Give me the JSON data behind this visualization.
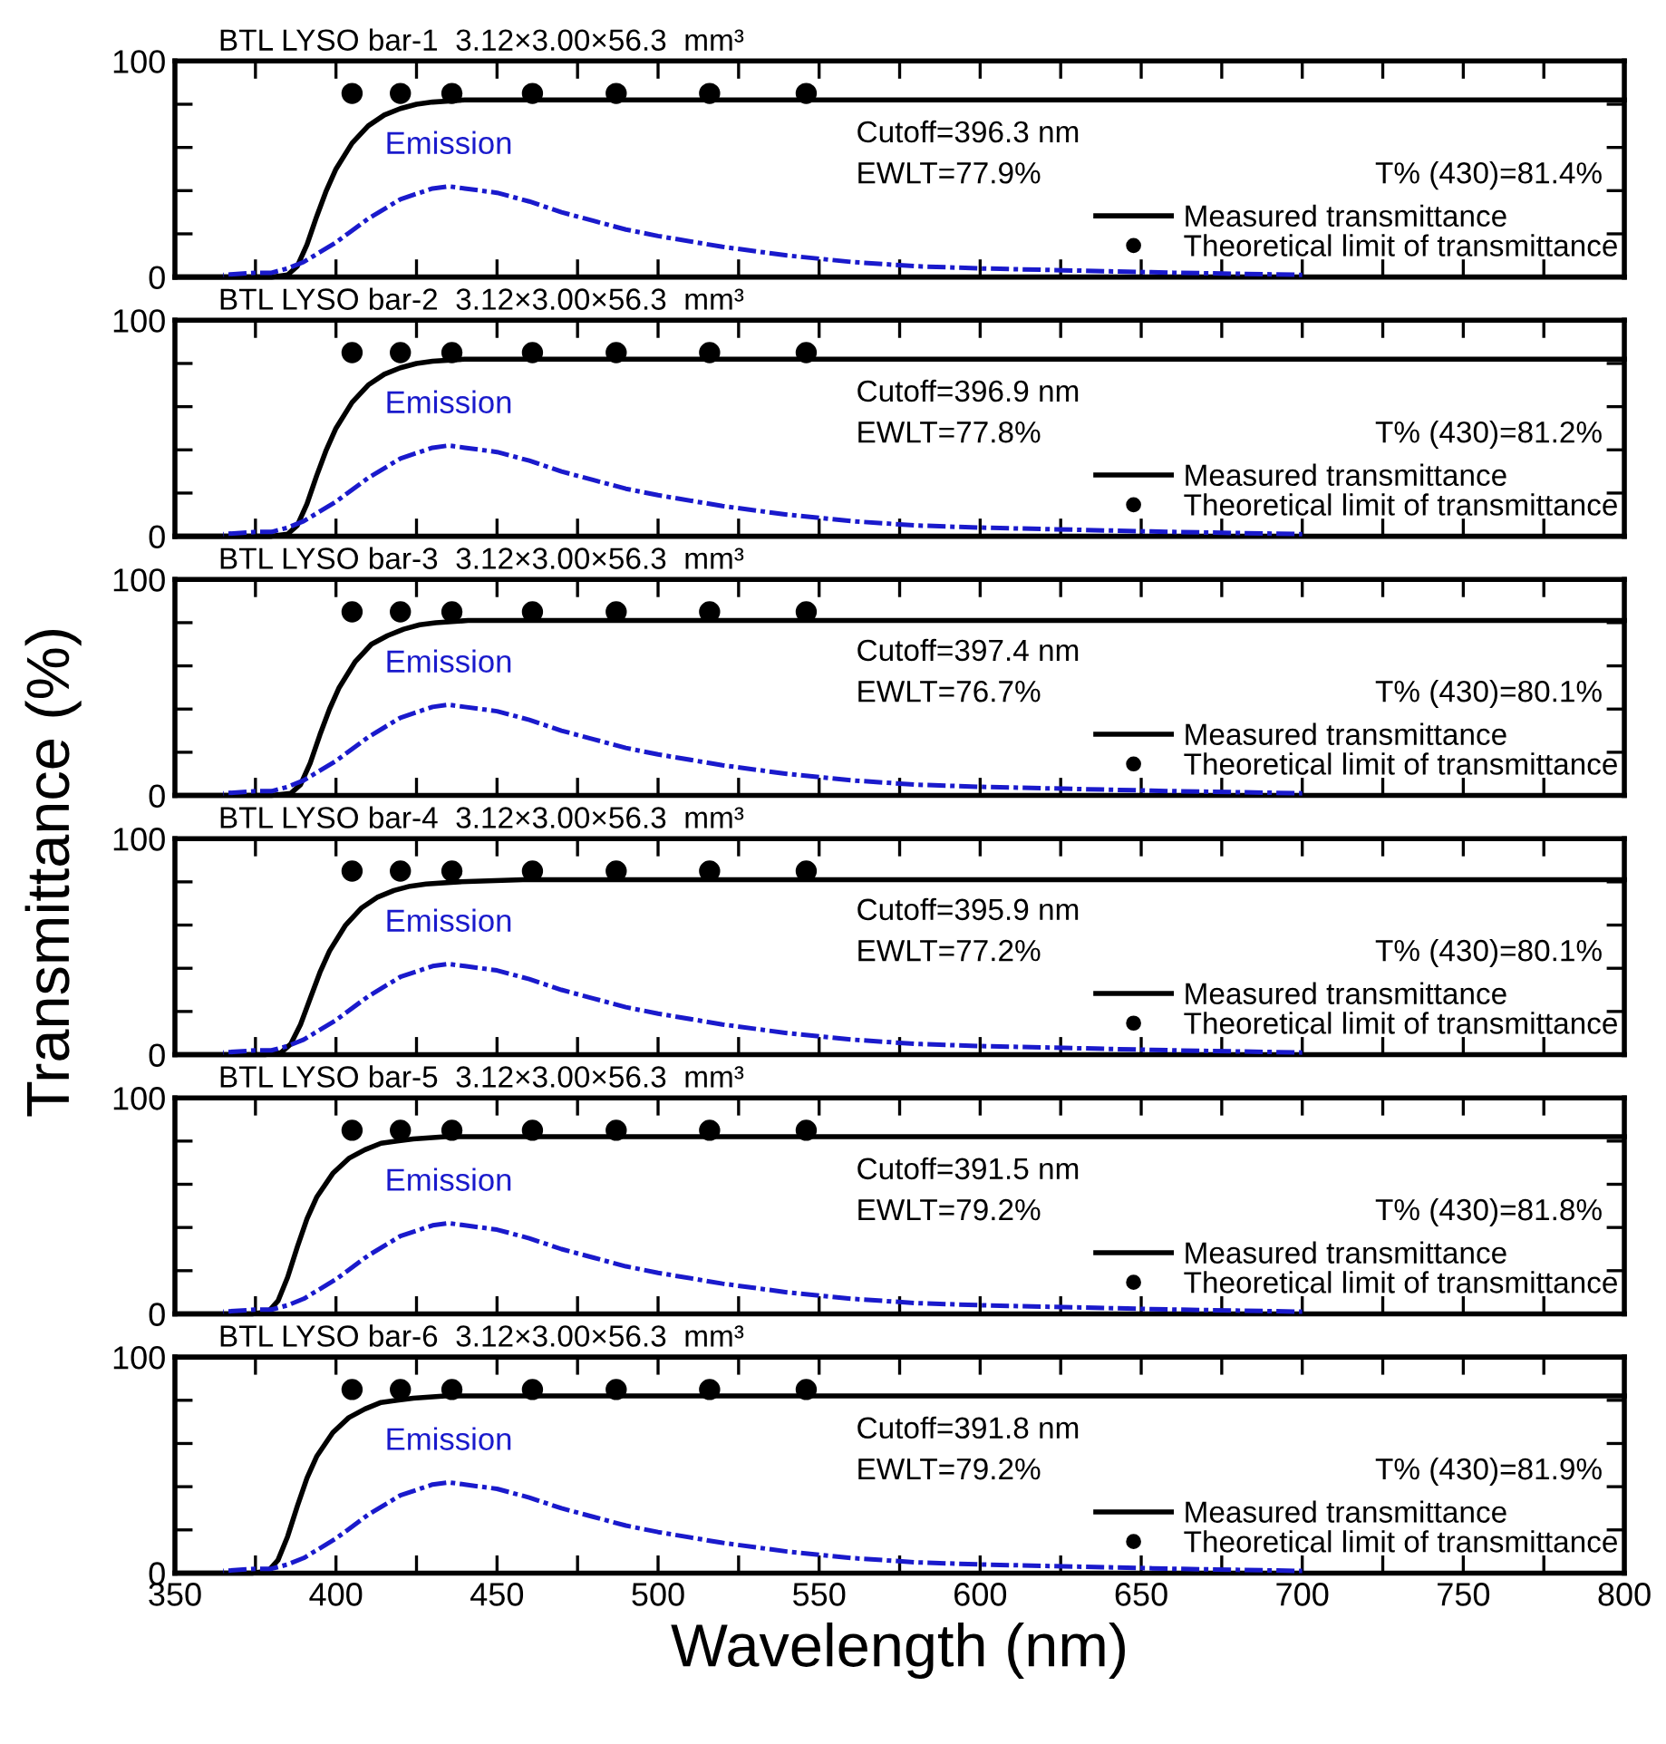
{
  "chart_data": [
    {
      "type": "line",
      "title": "BTL LYSO bar-1  3.12×3.00×56.3  mm³",
      "ylabel": "Transmittance (%)",
      "xlim": [
        350,
        800
      ],
      "ylim": [
        0,
        100
      ],
      "xticks": [
        {
          "value": 350,
          "label": null
        },
        {
          "value": 375,
          "label": null
        },
        {
          "value": 400,
          "label": null
        },
        {
          "value": 425,
          "label": null
        },
        {
          "value": 450,
          "label": null
        },
        {
          "value": 475,
          "label": null
        },
        {
          "value": 500,
          "label": null
        },
        {
          "value": 525,
          "label": null
        },
        {
          "value": 550,
          "label": null
        },
        {
          "value": 575,
          "label": null
        },
        {
          "value": 600,
          "label": null
        },
        {
          "value": 625,
          "label": null
        },
        {
          "value": 650,
          "label": null
        },
        {
          "value": 675,
          "label": null
        },
        {
          "value": 700,
          "label": null
        },
        {
          "value": 725,
          "label": null
        },
        {
          "value": 750,
          "label": null
        },
        {
          "value": 775,
          "label": null
        },
        {
          "value": 800,
          "label": null
        }
      ],
      "yticks": [
        0,
        {
          "value": 20,
          "label": null
        },
        {
          "value": 40,
          "label": null
        },
        {
          "value": 60,
          "label": null
        },
        {
          "value": 80,
          "label": null
        },
        100
      ],
      "tick_labels": "y",
      "legend": "lower right",
      "grid": false,
      "annotations": [
        "Cutoff=396.3 nm",
        "EWLT=77.9%",
        "T% (430)=81.4%"
      ],
      "series": [
        {
          "name": "Measured transmittance",
          "type": "line",
          "color": "#000000",
          "line_style": "solid",
          "x": [
            350,
            380,
            385,
            388,
            391,
            394,
            397,
            400,
            405,
            410,
            415,
            420,
            425,
            430,
            440,
            460,
            500,
            550,
            600,
            650,
            700,
            750,
            800
          ],
          "values": [
            0,
            0,
            1,
            5,
            15,
            28,
            40,
            50,
            62,
            70,
            75,
            78,
            80,
            81,
            82,
            82,
            82,
            82,
            82,
            82,
            82,
            82,
            82
          ]
        },
        {
          "name": "Theoretical limit of transmittance",
          "type": "scatter",
          "color": "#000000",
          "marker": "circle",
          "x": [
            405,
            420,
            436,
            461,
            487,
            516,
            546
          ],
          "values": [
            85,
            85,
            85,
            85,
            85,
            85,
            85
          ]
        },
        {
          "name": "Emission",
          "type": "line",
          "color": "#1a1acc",
          "line_style": "dashed",
          "x": [
            365,
            375,
            380,
            385,
            390,
            400,
            410,
            420,
            430,
            435,
            440,
            450,
            460,
            470,
            480,
            490,
            500,
            520,
            540,
            560,
            580,
            600,
            630,
            660,
            700
          ],
          "values": [
            1,
            2,
            2,
            4,
            7,
            16,
            27,
            36,
            41,
            42,
            41,
            39,
            35,
            30,
            26,
            22,
            19,
            14,
            10,
            7,
            5,
            4,
            3,
            2,
            1
          ]
        }
      ]
    },
    {
      "type": "line",
      "title": "BTL LYSO bar-2  3.12×3.00×56.3  mm³",
      "xlim": [
        350,
        800
      ],
      "ylim": [
        0,
        100
      ],
      "xticks": [
        {
          "value": 350,
          "label": null
        },
        {
          "value": 375,
          "label": null
        },
        {
          "value": 400,
          "label": null
        },
        {
          "value": 425,
          "label": null
        },
        {
          "value": 450,
          "label": null
        },
        {
          "value": 475,
          "label": null
        },
        {
          "value": 500,
          "label": null
        },
        {
          "value": 525,
          "label": null
        },
        {
          "value": 550,
          "label": null
        },
        {
          "value": 575,
          "label": null
        },
        {
          "value": 600,
          "label": null
        },
        {
          "value": 625,
          "label": null
        },
        {
          "value": 650,
          "label": null
        },
        {
          "value": 675,
          "label": null
        },
        {
          "value": 700,
          "label": null
        },
        {
          "value": 725,
          "label": null
        },
        {
          "value": 750,
          "label": null
        },
        {
          "value": 775,
          "label": null
        },
        {
          "value": 800,
          "label": null
        }
      ],
      "yticks": [
        0,
        {
          "value": 20,
          "label": null
        },
        {
          "value": 40,
          "label": null
        },
        {
          "value": 60,
          "label": null
        },
        {
          "value": 80,
          "label": null
        },
        100
      ],
      "tick_labels": "y",
      "legend": "lower right",
      "grid": false,
      "annotations": [
        "Cutoff=396.9 nm",
        "EWLT=77.8%",
        "T% (430)=81.2%"
      ],
      "series": [
        {
          "name": "Measured transmittance",
          "type": "line",
          "color": "#000000",
          "line_style": "solid",
          "x": [
            350,
            380,
            385,
            388,
            391,
            394,
            397,
            400,
            405,
            410,
            415,
            420,
            425,
            430,
            440,
            460,
            500,
            550,
            600,
            650,
            700,
            750,
            800
          ],
          "values": [
            0,
            0,
            1,
            5,
            15,
            28,
            40,
            50,
            62,
            70,
            75,
            78,
            80,
            81,
            82,
            82,
            82,
            82,
            82,
            82,
            82,
            82,
            82
          ]
        },
        {
          "name": "Theoretical limit of transmittance",
          "type": "scatter",
          "color": "#000000",
          "marker": "circle",
          "x": [
            405,
            420,
            436,
            461,
            487,
            516,
            546
          ],
          "values": [
            85,
            85,
            85,
            85,
            85,
            85,
            85
          ]
        },
        {
          "name": "Emission",
          "type": "line",
          "color": "#1a1acc",
          "line_style": "dashed",
          "x": [
            365,
            375,
            380,
            385,
            390,
            400,
            410,
            420,
            430,
            435,
            440,
            450,
            460,
            470,
            480,
            490,
            500,
            520,
            540,
            560,
            580,
            600,
            630,
            660,
            700
          ],
          "values": [
            1,
            2,
            2,
            4,
            7,
            16,
            27,
            36,
            41,
            42,
            41,
            39,
            35,
            30,
            26,
            22,
            19,
            14,
            10,
            7,
            5,
            4,
            3,
            2,
            1
          ]
        }
      ]
    },
    {
      "type": "line",
      "title": "BTL LYSO bar-3  3.12×3.00×56.3  mm³",
      "xlim": [
        350,
        800
      ],
      "ylim": [
        0,
        100
      ],
      "xticks": [
        {
          "value": 350,
          "label": null
        },
        {
          "value": 375,
          "label": null
        },
        {
          "value": 400,
          "label": null
        },
        {
          "value": 425,
          "label": null
        },
        {
          "value": 450,
          "label": null
        },
        {
          "value": 475,
          "label": null
        },
        {
          "value": 500,
          "label": null
        },
        {
          "value": 525,
          "label": null
        },
        {
          "value": 550,
          "label": null
        },
        {
          "value": 575,
          "label": null
        },
        {
          "value": 600,
          "label": null
        },
        {
          "value": 625,
          "label": null
        },
        {
          "value": 650,
          "label": null
        },
        {
          "value": 675,
          "label": null
        },
        {
          "value": 700,
          "label": null
        },
        {
          "value": 725,
          "label": null
        },
        {
          "value": 750,
          "label": null
        },
        {
          "value": 775,
          "label": null
        },
        {
          "value": 800,
          "label": null
        }
      ],
      "yticks": [
        0,
        {
          "value": 20,
          "label": null
        },
        {
          "value": 40,
          "label": null
        },
        {
          "value": 60,
          "label": null
        },
        {
          "value": 80,
          "label": null
        },
        100
      ],
      "tick_labels": "y",
      "legend": "lower right",
      "grid": false,
      "annotations": [
        "Cutoff=397.4 nm",
        "EWLT=76.7%",
        "T% (430)=80.1%"
      ],
      "series": [
        {
          "name": "Measured transmittance",
          "type": "line",
          "color": "#000000",
          "line_style": "solid",
          "x": [
            350,
            380,
            386,
            389,
            392,
            395,
            398,
            401,
            406,
            411,
            416,
            421,
            426,
            431,
            441,
            461,
            500,
            550,
            600,
            650,
            700,
            750,
            800
          ],
          "values": [
            0,
            0,
            1,
            5,
            15,
            28,
            40,
            50,
            62,
            70,
            74,
            77,
            79,
            80,
            81,
            81,
            81,
            81,
            81,
            81,
            81,
            81,
            81
          ]
        },
        {
          "name": "Theoretical limit of transmittance",
          "type": "scatter",
          "color": "#000000",
          "marker": "circle",
          "x": [
            405,
            420,
            436,
            461,
            487,
            516,
            546
          ],
          "values": [
            85,
            85,
            85,
            85,
            85,
            85,
            85
          ]
        },
        {
          "name": "Emission",
          "type": "line",
          "color": "#1a1acc",
          "line_style": "dashed",
          "x": [
            365,
            375,
            380,
            385,
            390,
            400,
            410,
            420,
            430,
            435,
            440,
            450,
            460,
            470,
            480,
            490,
            500,
            520,
            540,
            560,
            580,
            600,
            630,
            660,
            700
          ],
          "values": [
            1,
            2,
            2,
            4,
            7,
            16,
            27,
            36,
            41,
            42,
            41,
            39,
            35,
            30,
            26,
            22,
            19,
            14,
            10,
            7,
            5,
            4,
            3,
            2,
            1
          ]
        }
      ]
    },
    {
      "type": "line",
      "title": "BTL LYSO bar-4  3.12×3.00×56.3  mm³",
      "xlim": [
        350,
        800
      ],
      "ylim": [
        0,
        100
      ],
      "xticks": [
        {
          "value": 350,
          "label": null
        },
        {
          "value": 375,
          "label": null
        },
        {
          "value": 400,
          "label": null
        },
        {
          "value": 425,
          "label": null
        },
        {
          "value": 450,
          "label": null
        },
        {
          "value": 475,
          "label": null
        },
        {
          "value": 500,
          "label": null
        },
        {
          "value": 525,
          "label": null
        },
        {
          "value": 550,
          "label": null
        },
        {
          "value": 575,
          "label": null
        },
        {
          "value": 600,
          "label": null
        },
        {
          "value": 625,
          "label": null
        },
        {
          "value": 650,
          "label": null
        },
        {
          "value": 675,
          "label": null
        },
        {
          "value": 700,
          "label": null
        },
        {
          "value": 725,
          "label": null
        },
        {
          "value": 750,
          "label": null
        },
        {
          "value": 775,
          "label": null
        },
        {
          "value": 800,
          "label": null
        }
      ],
      "yticks": [
        0,
        {
          "value": 20,
          "label": null
        },
        {
          "value": 40,
          "label": null
        },
        {
          "value": 60,
          "label": null
        },
        {
          "value": 80,
          "label": null
        },
        100
      ],
      "tick_labels": "y",
      "legend": "lower right",
      "grid": false,
      "annotations": [
        "Cutoff=395.9 nm",
        "EWLT=77.2%",
        "T% (430)=80.1%"
      ],
      "series": [
        {
          "name": "Measured transmittance",
          "type": "line",
          "color": "#000000",
          "line_style": "solid",
          "x": [
            350,
            378,
            383,
            386,
            389,
            392,
            395,
            398,
            403,
            408,
            413,
            418,
            423,
            428,
            438,
            458,
            500,
            550,
            600,
            650,
            700,
            750,
            800
          ],
          "values": [
            0,
            0,
            1,
            5,
            14,
            26,
            38,
            48,
            60,
            68,
            73,
            76,
            78,
            79,
            80,
            81,
            81,
            81,
            81,
            81,
            81,
            81,
            81
          ]
        },
        {
          "name": "Theoretical limit of transmittance",
          "type": "scatter",
          "color": "#000000",
          "marker": "circle",
          "x": [
            405,
            420,
            436,
            461,
            487,
            516,
            546
          ],
          "values": [
            85,
            85,
            85,
            85,
            85,
            85,
            85
          ]
        },
        {
          "name": "Emission",
          "type": "line",
          "color": "#1a1acc",
          "line_style": "dashed",
          "x": [
            365,
            375,
            380,
            385,
            390,
            400,
            410,
            420,
            430,
            435,
            440,
            450,
            460,
            470,
            480,
            490,
            500,
            520,
            540,
            560,
            580,
            600,
            630,
            660,
            700
          ],
          "values": [
            1,
            2,
            2,
            4,
            7,
            16,
            27,
            36,
            41,
            42,
            41,
            39,
            35,
            30,
            26,
            22,
            19,
            14,
            10,
            7,
            5,
            4,
            3,
            2,
            1
          ]
        }
      ]
    },
    {
      "type": "line",
      "title": "BTL LYSO bar-5  3.12×3.00×56.3  mm³",
      "xlim": [
        350,
        800
      ],
      "ylim": [
        0,
        100
      ],
      "xticks": [
        {
          "value": 350,
          "label": null
        },
        {
          "value": 375,
          "label": null
        },
        {
          "value": 400,
          "label": null
        },
        {
          "value": 425,
          "label": null
        },
        {
          "value": 450,
          "label": null
        },
        {
          "value": 475,
          "label": null
        },
        {
          "value": 500,
          "label": null
        },
        {
          "value": 525,
          "label": null
        },
        {
          "value": 550,
          "label": null
        },
        {
          "value": 575,
          "label": null
        },
        {
          "value": 600,
          "label": null
        },
        {
          "value": 625,
          "label": null
        },
        {
          "value": 650,
          "label": null
        },
        {
          "value": 675,
          "label": null
        },
        {
          "value": 700,
          "label": null
        },
        {
          "value": 725,
          "label": null
        },
        {
          "value": 750,
          "label": null
        },
        {
          "value": 775,
          "label": null
        },
        {
          "value": 800,
          "label": null
        }
      ],
      "yticks": [
        0,
        {
          "value": 20,
          "label": null
        },
        {
          "value": 40,
          "label": null
        },
        {
          "value": 60,
          "label": null
        },
        {
          "value": 80,
          "label": null
        },
        100
      ],
      "tick_labels": "y",
      "legend": "lower right",
      "grid": false,
      "annotations": [
        "Cutoff=391.5 nm",
        "EWLT=79.2%",
        "T% (430)=81.8%"
      ],
      "series": [
        {
          "name": "Measured transmittance",
          "type": "line",
          "color": "#000000",
          "line_style": "solid",
          "x": [
            350,
            374,
            379,
            382,
            385,
            388,
            391,
            394,
            399,
            404,
            409,
            414,
            419,
            424,
            434,
            454,
            500,
            550,
            600,
            650,
            700,
            750,
            800
          ],
          "values": [
            0,
            0,
            1,
            6,
            17,
            31,
            44,
            54,
            65,
            72,
            76,
            79,
            80,
            81,
            82,
            82,
            82,
            82,
            82,
            82,
            82,
            82,
            82
          ]
        },
        {
          "name": "Theoretical limit of transmittance",
          "type": "scatter",
          "color": "#000000",
          "marker": "circle",
          "x": [
            405,
            420,
            436,
            461,
            487,
            516,
            546
          ],
          "values": [
            85,
            85,
            85,
            85,
            85,
            85,
            85
          ]
        },
        {
          "name": "Emission",
          "type": "line",
          "color": "#1a1acc",
          "line_style": "dashed",
          "x": [
            365,
            375,
            380,
            385,
            390,
            400,
            410,
            420,
            430,
            435,
            440,
            450,
            460,
            470,
            480,
            490,
            500,
            520,
            540,
            560,
            580,
            600,
            630,
            660,
            700
          ],
          "values": [
            1,
            2,
            2,
            4,
            7,
            16,
            27,
            36,
            41,
            42,
            41,
            39,
            35,
            30,
            26,
            22,
            19,
            14,
            10,
            7,
            5,
            4,
            3,
            2,
            1
          ]
        }
      ]
    },
    {
      "type": "line",
      "title": "BTL LYSO bar-6  3.12×3.00×56.3  mm³",
      "xlabel": "Wavelength (nm)",
      "xlim": [
        350,
        800
      ],
      "ylim": [
        0,
        100
      ],
      "xticks": [
        350,
        {
          "value": 375,
          "label": null
        },
        400,
        {
          "value": 425,
          "label": null
        },
        450,
        {
          "value": 475,
          "label": null
        },
        500,
        {
          "value": 525,
          "label": null
        },
        550,
        {
          "value": 575,
          "label": null
        },
        600,
        {
          "value": 625,
          "label": null
        },
        650,
        {
          "value": 675,
          "label": null
        },
        700,
        {
          "value": 725,
          "label": null
        },
        750,
        {
          "value": 775,
          "label": null
        },
        800
      ],
      "yticks": [
        0,
        {
          "value": 20,
          "label": null
        },
        {
          "value": 40,
          "label": null
        },
        {
          "value": 60,
          "label": null
        },
        {
          "value": 80,
          "label": null
        },
        100
      ],
      "legend": "lower right",
      "grid": false,
      "annotations": [
        "Cutoff=391.8 nm",
        "EWLT=79.2%",
        "T% (430)=81.9%"
      ],
      "series": [
        {
          "name": "Measured transmittance",
          "type": "line",
          "color": "#000000",
          "line_style": "solid",
          "x": [
            350,
            374,
            379,
            382,
            385,
            388,
            391,
            394,
            399,
            404,
            409,
            414,
            419,
            424,
            434,
            454,
            500,
            550,
            600,
            650,
            700,
            750,
            800
          ],
          "values": [
            0,
            0,
            1,
            6,
            17,
            31,
            44,
            54,
            65,
            72,
            76,
            79,
            80,
            81,
            82,
            82,
            82,
            82,
            82,
            82,
            82,
            82,
            82
          ]
        },
        {
          "name": "Theoretical limit of transmittance",
          "type": "scatter",
          "color": "#000000",
          "marker": "circle",
          "x": [
            405,
            420,
            436,
            461,
            487,
            516,
            546
          ],
          "values": [
            85,
            85,
            85,
            85,
            85,
            85,
            85
          ]
        },
        {
          "name": "Emission",
          "type": "line",
          "color": "#1a1acc",
          "line_style": "dashed",
          "x": [
            365,
            375,
            380,
            385,
            390,
            400,
            410,
            420,
            430,
            435,
            440,
            450,
            460,
            470,
            480,
            490,
            500,
            520,
            540,
            560,
            580,
            600,
            630,
            660,
            700
          ],
          "values": [
            1,
            2,
            2,
            4,
            7,
            16,
            27,
            36,
            41,
            42,
            41,
            39,
            35,
            30,
            26,
            22,
            19,
            14,
            10,
            7,
            5,
            4,
            3,
            2,
            1
          ]
        }
      ]
    }
  ]
}
